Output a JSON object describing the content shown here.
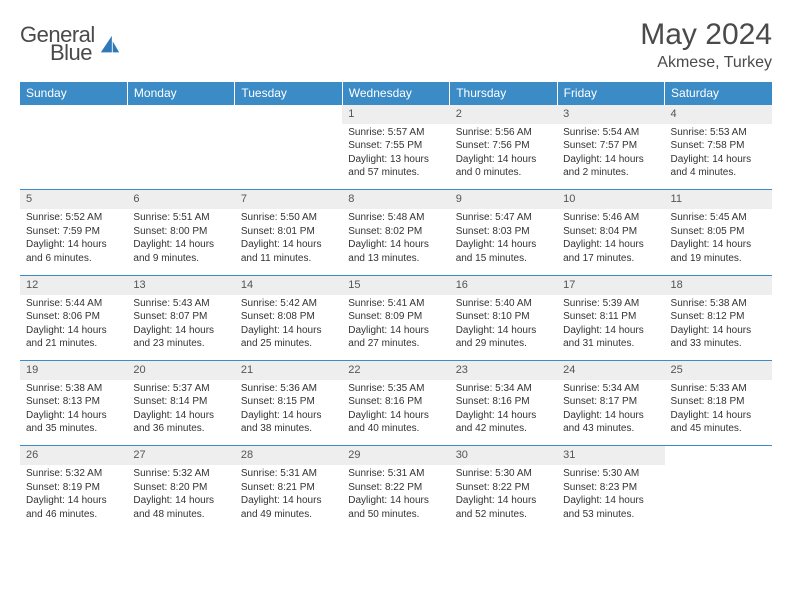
{
  "brand": {
    "part1": "General",
    "part2": "Blue"
  },
  "title": "May 2024",
  "location": "Akmese, Turkey",
  "colors": {
    "header_bg": "#3b8bc6",
    "header_fg": "#ffffff",
    "daynum_bg": "#eeeeee",
    "border": "#3b8bc6",
    "text": "#333333",
    "logo_accent": "#2e79b8"
  },
  "weekdays": [
    "Sunday",
    "Monday",
    "Tuesday",
    "Wednesday",
    "Thursday",
    "Friday",
    "Saturday"
  ],
  "weeks": [
    [
      null,
      null,
      null,
      {
        "n": "1",
        "sr": "Sunrise: 5:57 AM",
        "ss": "Sunset: 7:55 PM",
        "d1": "Daylight: 13 hours",
        "d2": "and 57 minutes."
      },
      {
        "n": "2",
        "sr": "Sunrise: 5:56 AM",
        "ss": "Sunset: 7:56 PM",
        "d1": "Daylight: 14 hours",
        "d2": "and 0 minutes."
      },
      {
        "n": "3",
        "sr": "Sunrise: 5:54 AM",
        "ss": "Sunset: 7:57 PM",
        "d1": "Daylight: 14 hours",
        "d2": "and 2 minutes."
      },
      {
        "n": "4",
        "sr": "Sunrise: 5:53 AM",
        "ss": "Sunset: 7:58 PM",
        "d1": "Daylight: 14 hours",
        "d2": "and 4 minutes."
      }
    ],
    [
      {
        "n": "5",
        "sr": "Sunrise: 5:52 AM",
        "ss": "Sunset: 7:59 PM",
        "d1": "Daylight: 14 hours",
        "d2": "and 6 minutes."
      },
      {
        "n": "6",
        "sr": "Sunrise: 5:51 AM",
        "ss": "Sunset: 8:00 PM",
        "d1": "Daylight: 14 hours",
        "d2": "and 9 minutes."
      },
      {
        "n": "7",
        "sr": "Sunrise: 5:50 AM",
        "ss": "Sunset: 8:01 PM",
        "d1": "Daylight: 14 hours",
        "d2": "and 11 minutes."
      },
      {
        "n": "8",
        "sr": "Sunrise: 5:48 AM",
        "ss": "Sunset: 8:02 PM",
        "d1": "Daylight: 14 hours",
        "d2": "and 13 minutes."
      },
      {
        "n": "9",
        "sr": "Sunrise: 5:47 AM",
        "ss": "Sunset: 8:03 PM",
        "d1": "Daylight: 14 hours",
        "d2": "and 15 minutes."
      },
      {
        "n": "10",
        "sr": "Sunrise: 5:46 AM",
        "ss": "Sunset: 8:04 PM",
        "d1": "Daylight: 14 hours",
        "d2": "and 17 minutes."
      },
      {
        "n": "11",
        "sr": "Sunrise: 5:45 AM",
        "ss": "Sunset: 8:05 PM",
        "d1": "Daylight: 14 hours",
        "d2": "and 19 minutes."
      }
    ],
    [
      {
        "n": "12",
        "sr": "Sunrise: 5:44 AM",
        "ss": "Sunset: 8:06 PM",
        "d1": "Daylight: 14 hours",
        "d2": "and 21 minutes."
      },
      {
        "n": "13",
        "sr": "Sunrise: 5:43 AM",
        "ss": "Sunset: 8:07 PM",
        "d1": "Daylight: 14 hours",
        "d2": "and 23 minutes."
      },
      {
        "n": "14",
        "sr": "Sunrise: 5:42 AM",
        "ss": "Sunset: 8:08 PM",
        "d1": "Daylight: 14 hours",
        "d2": "and 25 minutes."
      },
      {
        "n": "15",
        "sr": "Sunrise: 5:41 AM",
        "ss": "Sunset: 8:09 PM",
        "d1": "Daylight: 14 hours",
        "d2": "and 27 minutes."
      },
      {
        "n": "16",
        "sr": "Sunrise: 5:40 AM",
        "ss": "Sunset: 8:10 PM",
        "d1": "Daylight: 14 hours",
        "d2": "and 29 minutes."
      },
      {
        "n": "17",
        "sr": "Sunrise: 5:39 AM",
        "ss": "Sunset: 8:11 PM",
        "d1": "Daylight: 14 hours",
        "d2": "and 31 minutes."
      },
      {
        "n": "18",
        "sr": "Sunrise: 5:38 AM",
        "ss": "Sunset: 8:12 PM",
        "d1": "Daylight: 14 hours",
        "d2": "and 33 minutes."
      }
    ],
    [
      {
        "n": "19",
        "sr": "Sunrise: 5:38 AM",
        "ss": "Sunset: 8:13 PM",
        "d1": "Daylight: 14 hours",
        "d2": "and 35 minutes."
      },
      {
        "n": "20",
        "sr": "Sunrise: 5:37 AM",
        "ss": "Sunset: 8:14 PM",
        "d1": "Daylight: 14 hours",
        "d2": "and 36 minutes."
      },
      {
        "n": "21",
        "sr": "Sunrise: 5:36 AM",
        "ss": "Sunset: 8:15 PM",
        "d1": "Daylight: 14 hours",
        "d2": "and 38 minutes."
      },
      {
        "n": "22",
        "sr": "Sunrise: 5:35 AM",
        "ss": "Sunset: 8:16 PM",
        "d1": "Daylight: 14 hours",
        "d2": "and 40 minutes."
      },
      {
        "n": "23",
        "sr": "Sunrise: 5:34 AM",
        "ss": "Sunset: 8:16 PM",
        "d1": "Daylight: 14 hours",
        "d2": "and 42 minutes."
      },
      {
        "n": "24",
        "sr": "Sunrise: 5:34 AM",
        "ss": "Sunset: 8:17 PM",
        "d1": "Daylight: 14 hours",
        "d2": "and 43 minutes."
      },
      {
        "n": "25",
        "sr": "Sunrise: 5:33 AM",
        "ss": "Sunset: 8:18 PM",
        "d1": "Daylight: 14 hours",
        "d2": "and 45 minutes."
      }
    ],
    [
      {
        "n": "26",
        "sr": "Sunrise: 5:32 AM",
        "ss": "Sunset: 8:19 PM",
        "d1": "Daylight: 14 hours",
        "d2": "and 46 minutes."
      },
      {
        "n": "27",
        "sr": "Sunrise: 5:32 AM",
        "ss": "Sunset: 8:20 PM",
        "d1": "Daylight: 14 hours",
        "d2": "and 48 minutes."
      },
      {
        "n": "28",
        "sr": "Sunrise: 5:31 AM",
        "ss": "Sunset: 8:21 PM",
        "d1": "Daylight: 14 hours",
        "d2": "and 49 minutes."
      },
      {
        "n": "29",
        "sr": "Sunrise: 5:31 AM",
        "ss": "Sunset: 8:22 PM",
        "d1": "Daylight: 14 hours",
        "d2": "and 50 minutes."
      },
      {
        "n": "30",
        "sr": "Sunrise: 5:30 AM",
        "ss": "Sunset: 8:22 PM",
        "d1": "Daylight: 14 hours",
        "d2": "and 52 minutes."
      },
      {
        "n": "31",
        "sr": "Sunrise: 5:30 AM",
        "ss": "Sunset: 8:23 PM",
        "d1": "Daylight: 14 hours",
        "d2": "and 53 minutes."
      },
      null
    ]
  ]
}
